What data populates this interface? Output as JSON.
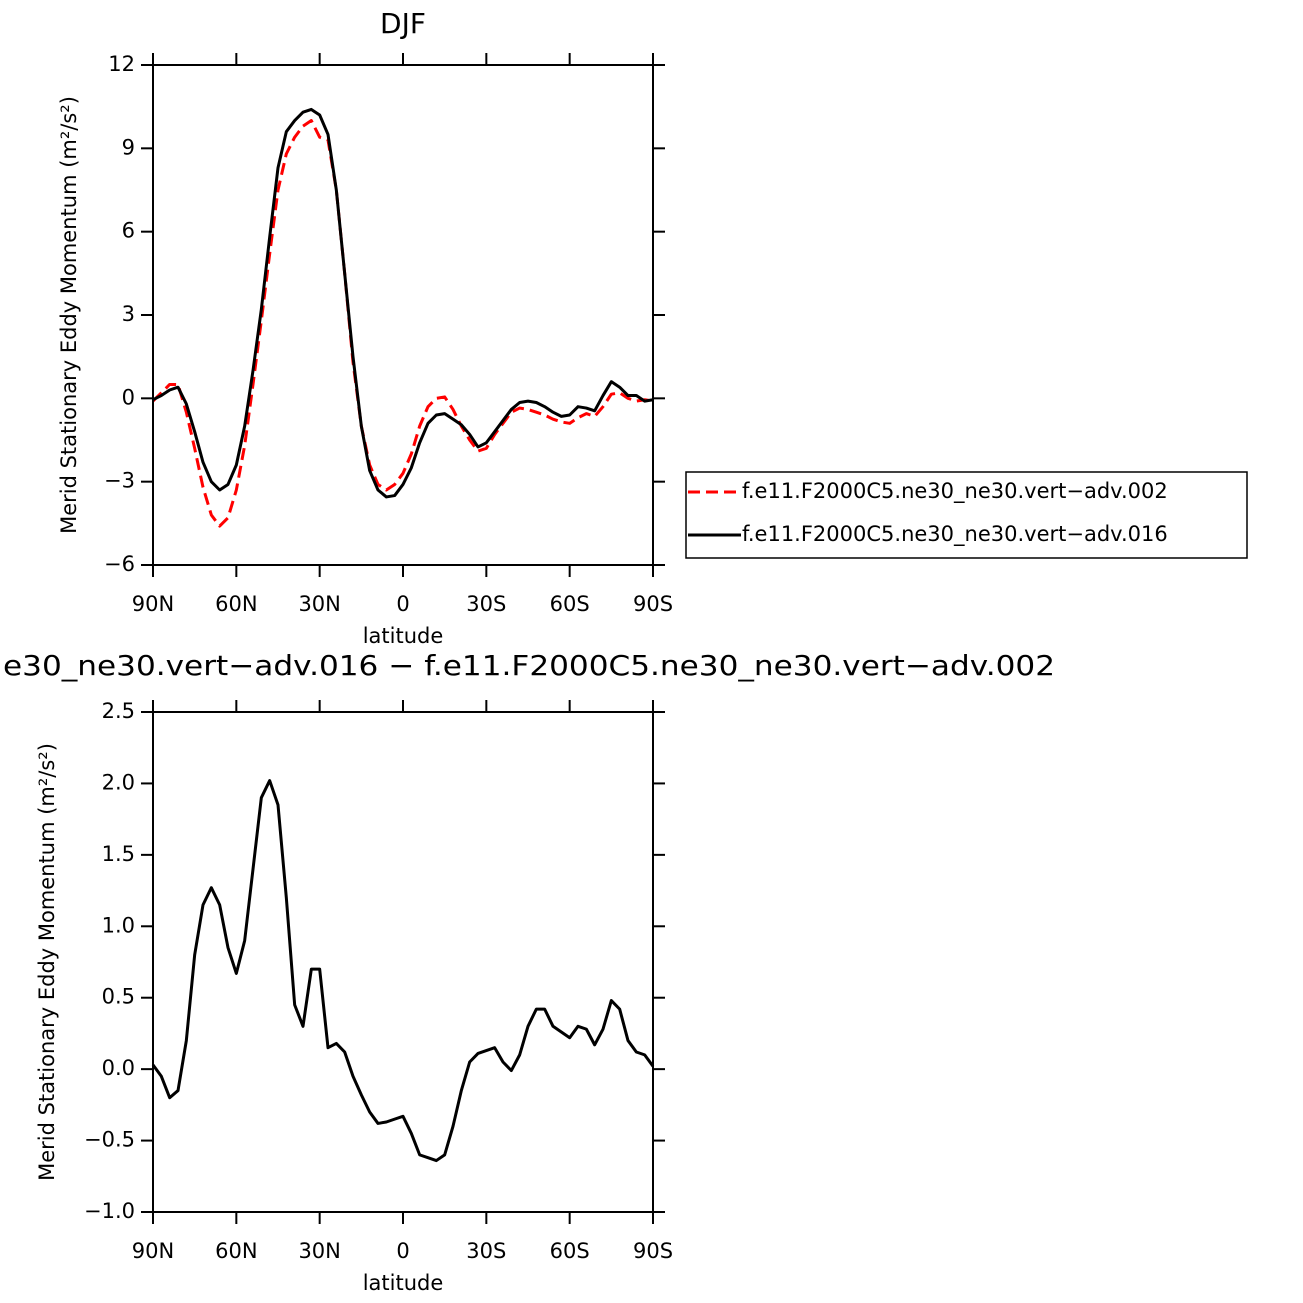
{
  "chart_data": [
    {
      "type": "line",
      "title": "DJF",
      "x_label": "latitude",
      "y_label": "Merid Stationary Eddy Momentum (m²/s²)",
      "x": [
        90,
        87,
        84,
        81,
        78,
        75,
        72,
        69,
        66,
        63,
        60,
        57,
        54,
        51,
        48,
        45,
        42,
        39,
        36,
        33,
        30,
        27,
        24,
        21,
        18,
        15,
        12,
        9,
        6,
        3,
        0,
        -3,
        -6,
        -9,
        -12,
        -15,
        -18,
        -21,
        -24,
        -27,
        -30,
        -33,
        -36,
        -39,
        -42,
        -45,
        -48,
        -51,
        -54,
        -57,
        -60,
        -63,
        -66,
        -69,
        -72,
        -75,
        -78,
        -81,
        -84,
        -87,
        -90
      ],
      "xlim": [
        90,
        -90
      ],
      "xticks": [
        {
          "value": 90,
          "label": "90N"
        },
        {
          "value": 60,
          "label": "60N"
        },
        {
          "value": 30,
          "label": "30N"
        },
        0,
        {
          "value": -30,
          "label": "30S"
        },
        {
          "value": -60,
          "label": "60S"
        },
        {
          "value": -90,
          "label": "90S"
        }
      ],
      "ylim": [
        -6,
        12
      ],
      "yticks": [
        {
          "value": -6,
          "label": "−6"
        },
        {
          "value": -3,
          "label": "−3"
        },
        0,
        3,
        6,
        9,
        12
      ],
      "legend": "right",
      "series": [
        {
          "name": "f.e11.F2000C5.ne30_ne30.vert−adv.002",
          "color": "#ff0000",
          "style": "dashed",
          "values": [
            -0.1,
            0.2,
            0.5,
            0.5,
            -0.5,
            -1.8,
            -3.2,
            -4.2,
            -4.6,
            -4.3,
            -3.3,
            -1.7,
            0.5,
            2.8,
            5.2,
            7.5,
            8.8,
            9.4,
            9.8,
            10.0,
            9.4,
            9.3,
            7.5,
            4.5,
            1.3,
            -1.0,
            -2.4,
            -3.1,
            -3.3,
            -3.1,
            -2.7,
            -2.0,
            -1.0,
            -0.3,
            0.0,
            0.05,
            -0.4,
            -1.0,
            -1.5,
            -1.9,
            -1.8,
            -1.3,
            -0.9,
            -0.5,
            -0.35,
            -0.4,
            -0.5,
            -0.6,
            -0.75,
            -0.85,
            -0.9,
            -0.7,
            -0.55,
            -0.65,
            -0.3,
            0.15,
            0.2,
            0.0,
            -0.1,
            -0.05,
            -0.1
          ]
        },
        {
          "name": "f.e11.F2000C5.ne30_ne30.vert−adv.016",
          "color": "#000000",
          "style": "solid",
          "values": [
            -0.05,
            0.1,
            0.3,
            0.4,
            -0.2,
            -1.2,
            -2.3,
            -3.0,
            -3.3,
            -3.1,
            -2.4,
            -1.0,
            1.0,
            3.2,
            5.8,
            8.3,
            9.6,
            10.0,
            10.3,
            10.4,
            10.2,
            9.5,
            7.5,
            4.5,
            1.5,
            -1.0,
            -2.6,
            -3.3,
            -3.55,
            -3.5,
            -3.1,
            -2.5,
            -1.6,
            -0.9,
            -0.6,
            -0.55,
            -0.75,
            -0.95,
            -1.3,
            -1.75,
            -1.6,
            -1.2,
            -0.8,
            -0.4,
            -0.15,
            -0.1,
            -0.15,
            -0.3,
            -0.5,
            -0.65,
            -0.6,
            -0.3,
            -0.35,
            -0.45,
            0.1,
            0.6,
            0.4,
            0.1,
            0.1,
            -0.1,
            -0.05
          ]
        }
      ]
    },
    {
      "type": "line",
      "title": "e30_ne30.vert−adv.016 − f.e11.F2000C5.ne30_ne30.vert−adv.002",
      "x_label": "latitude",
      "y_label": "Merid Stationary Eddy Momentum (m²/s²)",
      "x": [
        90,
        87,
        84,
        81,
        78,
        75,
        72,
        69,
        66,
        63,
        60,
        57,
        54,
        51,
        48,
        45,
        42,
        39,
        36,
        33,
        30,
        27,
        24,
        21,
        18,
        15,
        12,
        9,
        6,
        3,
        0,
        -3,
        -6,
        -9,
        -12,
        -15,
        -18,
        -21,
        -24,
        -27,
        -30,
        -33,
        -36,
        -39,
        -42,
        -45,
        -48,
        -51,
        -54,
        -57,
        -60,
        -63,
        -66,
        -69,
        -72,
        -75,
        -78,
        -81,
        -84,
        -87,
        -90
      ],
      "xlim": [
        90,
        -90
      ],
      "xticks": [
        {
          "value": 90,
          "label": "90N"
        },
        {
          "value": 60,
          "label": "60N"
        },
        {
          "value": 30,
          "label": "30N"
        },
        0,
        {
          "value": -30,
          "label": "30S"
        },
        {
          "value": -60,
          "label": "60S"
        },
        {
          "value": -90,
          "label": "90S"
        }
      ],
      "ylim": [
        -1,
        2.5
      ],
      "yticks": [
        {
          "value": -1,
          "label": "−1.0"
        },
        {
          "value": -0.5,
          "label": "−0.5"
        },
        {
          "value": 0,
          "label": "0.0"
        },
        0.5,
        {
          "value": 1,
          "label": "1.0"
        },
        1.5,
        {
          "value": 2,
          "label": "2.0"
        },
        2.5
      ],
      "series": [
        {
          "color": "#000000",
          "style": "solid",
          "values": [
            0.03,
            -0.05,
            -0.2,
            -0.15,
            0.2,
            0.8,
            1.15,
            1.27,
            1.15,
            0.85,
            0.67,
            0.9,
            1.4,
            1.9,
            2.02,
            1.85,
            1.2,
            0.45,
            0.3,
            0.7,
            0.7,
            0.15,
            0.18,
            0.12,
            -0.05,
            -0.18,
            -0.3,
            -0.38,
            -0.37,
            -0.35,
            -0.33,
            -0.45,
            -0.6,
            -0.62,
            -0.64,
            -0.6,
            -0.4,
            -0.15,
            0.05,
            0.11,
            0.13,
            0.15,
            0.05,
            -0.01,
            0.1,
            0.3,
            0.42,
            0.42,
            0.3,
            0.26,
            0.22,
            0.3,
            0.28,
            0.17,
            0.28,
            0.48,
            0.42,
            0.2,
            0.12,
            0.1,
            0.02
          ]
        }
      ]
    }
  ]
}
